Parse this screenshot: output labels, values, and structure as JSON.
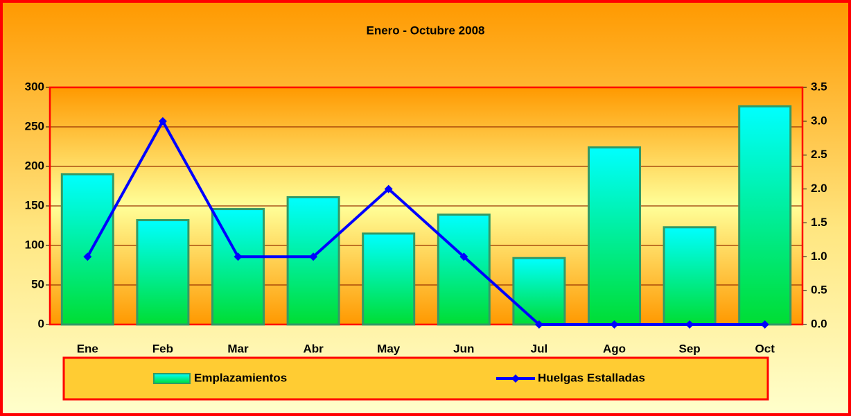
{
  "chart_data": {
    "type": "bar",
    "title": "Enero - Octubre 2008",
    "categories": [
      "Ene",
      "Feb",
      "Mar",
      "Abr",
      "May",
      "Jun",
      "Jul",
      "Ago",
      "Sep",
      "Oct"
    ],
    "series": [
      {
        "name": "Emplazamientos",
        "type": "bar",
        "color": "#00ffff",
        "values": [
          190,
          132,
          146,
          161,
          115,
          139,
          84,
          224,
          123,
          276
        ]
      },
      {
        "name": "Huelgas Estalladas",
        "type": "line",
        "axis": "y2",
        "color": "#0000ff",
        "values": [
          1,
          3,
          1,
          1,
          2,
          1,
          0,
          0,
          0,
          0
        ]
      }
    ],
    "ylim": [
      0,
      300
    ],
    "yticks": [
      0,
      50,
      100,
      150,
      200,
      250,
      300
    ],
    "y2lim": [
      0,
      3.5
    ],
    "y2ticks": [
      {
        "value": 0,
        "label": "0.0"
      },
      0.5,
      {
        "value": 1,
        "label": "1.0"
      },
      1.5,
      {
        "value": 2,
        "label": "2.0"
      },
      2.5,
      {
        "value": 3,
        "label": "3.0"
      },
      3.5
    ],
    "grid": true,
    "legend": "bottom"
  }
}
